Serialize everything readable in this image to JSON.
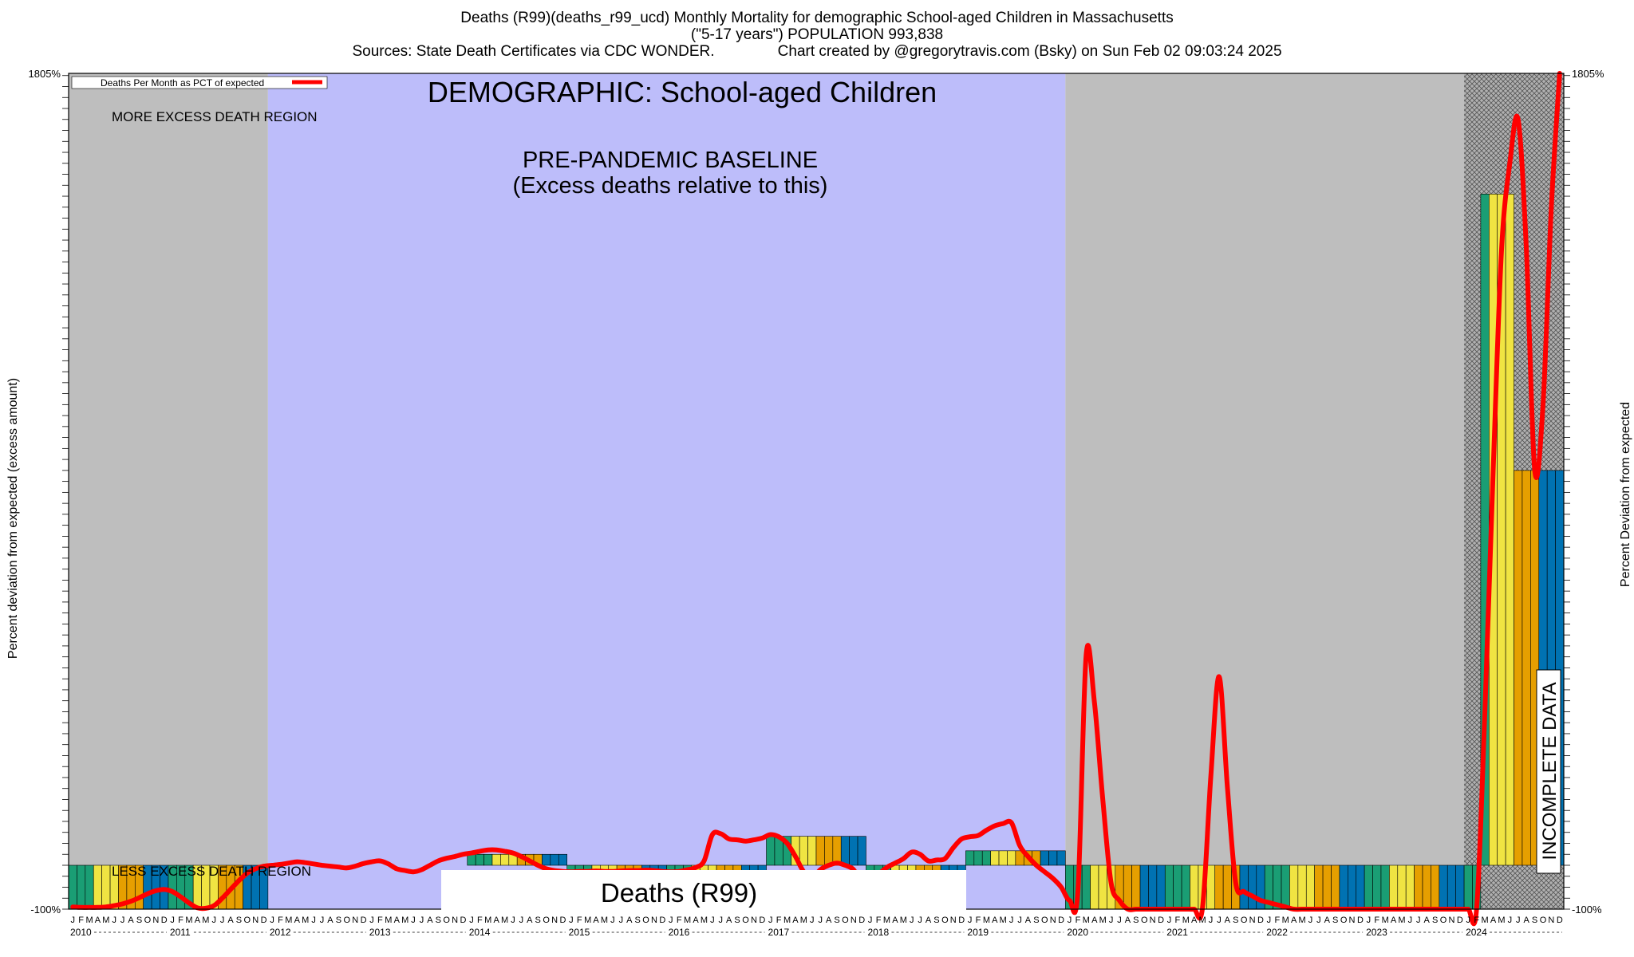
{
  "header": {
    "line1": "Deaths (R99)(deaths_r99_ucd) Monthly Mortality for demographic School-aged Children in Massachusetts",
    "line2": "(\"5-17 years\") POPULATION 993,838",
    "line3": "Sources: State Death Certificates via CDC WONDER.               Chart created by @gregorytravis.com (Bsky) on Sun Feb 02 09:03:24 2025"
  },
  "legend": {
    "label": "Deaths Per Month as PCT of expected",
    "color": "#ff0000"
  },
  "annotations": {
    "demographic": "DEMOGRAPHIC: School-aged Children",
    "more_region": "MORE EXCESS DEATH REGION",
    "less_region": "LESS EXCESS DEATH REGION",
    "baseline_1": "PRE-PANDEMIC BASELINE",
    "baseline_2": "(Excess deaths relative to this)",
    "incomplete": "INCOMPLETE DATA",
    "cause_box": "Deaths (R99)"
  },
  "axes": {
    "y_left_label": "Percent deviation from expected (excess amount)",
    "y_right_label": "Percent Deviation from expected",
    "y_top_tick": "1805%",
    "y_bottom_tick": "-100%"
  },
  "colors": {
    "baseline_region": "#bdbdfa",
    "outside_region": "#bebebe",
    "incomplete_region": "#a9a9a9",
    "line": "#ff0000",
    "bar_palette": [
      "#1a9e74",
      "#f0e442",
      "#e69f00",
      "#0072b2"
    ]
  },
  "chart_data": {
    "type": "bar",
    "x_start": "2010-01",
    "x_end": "2024-12",
    "x_unit": "month",
    "y_unit": "percent deviation from expected",
    "ylim": [
      -100,
      1805
    ],
    "years": [
      "2010",
      "2011",
      "2012",
      "2013",
      "2014",
      "2015",
      "2016",
      "2017",
      "2018",
      "2019",
      "2020",
      "2021",
      "2022",
      "2023",
      "2024"
    ],
    "month_letters": [
      "J",
      "F",
      "M",
      "A",
      "M",
      "J",
      "J",
      "A",
      "S",
      "O",
      "N",
      "D"
    ],
    "baseline_period": [
      "2012-01",
      "2019-12"
    ],
    "incomplete_period": [
      "2024-01",
      "2024-12"
    ],
    "series": [
      {
        "name": "Deaths Per Month as PCT of expected",
        "values": [
          -100,
          -100,
          -100,
          -100,
          -100,
          -100,
          -100,
          -100,
          -100,
          -100,
          -100,
          -100,
          -100,
          -100,
          -100,
          -100,
          -100,
          -100,
          -100,
          -100,
          -100,
          -100,
          -100,
          -100,
          0,
          0,
          0,
          0,
          0,
          0,
          0,
          0,
          0,
          0,
          0,
          0,
          0,
          0,
          0,
          0,
          0,
          0,
          0,
          0,
          0,
          0,
          0,
          0,
          25,
          25,
          25,
          25,
          25,
          25,
          25,
          25,
          25,
          25,
          25,
          25,
          -100,
          -100,
          -100,
          -100,
          -100,
          -100,
          -100,
          -100,
          -100,
          -100,
          -100,
          -100,
          -100,
          -100,
          -100,
          -100,
          -100,
          -100,
          -100,
          -100,
          -100,
          -100,
          -100,
          -100,
          66,
          66,
          66,
          66,
          66,
          66,
          66,
          66,
          66,
          66,
          66,
          66,
          -100,
          -100,
          -100,
          -100,
          -100,
          -100,
          -100,
          -100,
          -100,
          -100,
          -100,
          -100,
          33,
          33,
          33,
          33,
          33,
          33,
          33,
          33,
          33,
          33,
          33,
          33,
          -100,
          -100,
          -100,
          -100,
          -100,
          -100,
          -100,
          -100,
          -100,
          -100,
          -100,
          -100,
          -100,
          -100,
          -100,
          -100,
          -100,
          -100,
          -100,
          -100,
          -100,
          -100,
          -100,
          -100,
          -100,
          -100,
          -100,
          -100,
          -100,
          -100,
          -100,
          -100,
          -100,
          -100,
          -100,
          -100,
          -100,
          -100,
          -100,
          -100,
          -100,
          -100,
          -100,
          -100,
          -100,
          -100,
          -100,
          -100,
          -100,
          -100,
          1530,
          1530,
          1530,
          1530,
          900,
          900,
          900,
          900,
          900,
          900
        ]
      }
    ],
    "line": [
      -95,
      -96,
      -96,
      -96,
      -95,
      -92,
      -88,
      -82,
      -74,
      -65,
      -58,
      -55,
      -60,
      -72,
      -86,
      -97,
      -98,
      -92,
      -75,
      -55,
      -35,
      -18,
      -8,
      -2,
      0,
      2,
      5,
      8,
      6,
      3,
      0,
      -2,
      -4,
      -6,
      -2,
      4,
      8,
      10,
      3,
      -8,
      -12,
      -15,
      -10,
      0,
      10,
      16,
      20,
      25,
      28,
      32,
      35,
      35,
      32,
      28,
      20,
      10,
      0,
      -8,
      -12,
      -14,
      -15,
      -14,
      -14,
      -13,
      -14,
      -14,
      -13,
      -12,
      -12,
      -11,
      -12,
      -14,
      -15,
      -14,
      -10,
      -5,
      10,
      70,
      72,
      60,
      58,
      55,
      58,
      62,
      70,
      65,
      50,
      20,
      -15,
      -30,
      -10,
      0,
      5,
      0,
      -10,
      -40,
      -30,
      -20,
      -5,
      5,
      15,
      30,
      25,
      10,
      12,
      15,
      40,
      60,
      65,
      68,
      80,
      90,
      95,
      97,
      45,
      20,
      0,
      -15,
      -30,
      -50,
      -80,
      -60,
      480,
      370,
      150,
      -40,
      -80,
      -100,
      -100,
      -100,
      -100,
      -100,
      -100,
      -100,
      -100,
      -100,
      -98,
      200,
      430,
      180,
      -40,
      -60,
      -70,
      -80,
      -85,
      -90,
      -95,
      -100,
      -100,
      -100,
      -100,
      -100,
      -100,
      -100,
      -100,
      -100,
      -100,
      -100,
      -100,
      -100,
      -100,
      -100,
      -100,
      -100,
      -100,
      -100,
      -100,
      -100,
      -100,
      -100,
      350,
      900,
      1400,
      1600,
      1700,
      1400,
      900,
      1050,
      1500,
      1805
    ]
  }
}
